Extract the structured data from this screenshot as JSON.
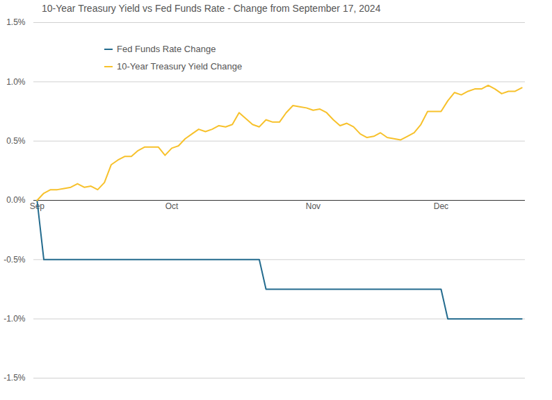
{
  "chart_data": {
    "type": "line",
    "title": "10-Year Treasury Yield vs Fed Funds Rate - Change from September 17, 2024",
    "categories": [
      "Sep",
      null,
      null,
      null,
      null,
      null,
      null,
      null,
      null,
      null,
      null,
      null,
      null,
      null,
      null,
      null,
      null,
      null,
      null,
      null,
      "Oct",
      null,
      null,
      null,
      null,
      null,
      null,
      null,
      null,
      null,
      null,
      null,
      null,
      null,
      null,
      null,
      null,
      null,
      null,
      null,
      null,
      "Nov",
      null,
      null,
      null,
      null,
      null,
      null,
      null,
      null,
      null,
      null,
      null,
      null,
      null,
      null,
      null,
      null,
      null,
      null,
      "Dec",
      null,
      null,
      null,
      null,
      null,
      null,
      null,
      null,
      null,
      null,
      null,
      null
    ],
    "series": [
      {
        "name": "Fed Funds Rate Change",
        "color": "#236b8e",
        "values": [
          0,
          -0.5,
          -0.5,
          -0.5,
          -0.5,
          -0.5,
          -0.5,
          -0.5,
          -0.5,
          -0.5,
          -0.5,
          -0.5,
          -0.5,
          -0.5,
          -0.5,
          -0.5,
          -0.5,
          -0.5,
          -0.5,
          -0.5,
          -0.5,
          -0.5,
          -0.5,
          -0.5,
          -0.5,
          -0.5,
          -0.5,
          -0.5,
          -0.5,
          -0.5,
          -0.5,
          -0.5,
          -0.5,
          -0.5,
          -0.75,
          -0.75,
          -0.75,
          -0.75,
          -0.75,
          -0.75,
          -0.75,
          -0.75,
          -0.75,
          -0.75,
          -0.75,
          -0.75,
          -0.75,
          -0.75,
          -0.75,
          -0.75,
          -0.75,
          -0.75,
          -0.75,
          -0.75,
          -0.75,
          -0.75,
          -0.75,
          -0.75,
          -0.75,
          -0.75,
          -0.75,
          -1,
          -1,
          -1,
          -1,
          -1,
          -1,
          -1,
          -1,
          -1,
          -1,
          -1,
          -1
        ]
      },
      {
        "name": "10-Year Treasury Yield Change",
        "color": "#f7c12b",
        "values": [
          0,
          0.06,
          0.09,
          0.09,
          0.1,
          0.11,
          0.14,
          0.11,
          0.12,
          0.09,
          0.15,
          0.3,
          0.34,
          0.37,
          0.37,
          0.42,
          0.45,
          0.45,
          0.45,
          0.38,
          0.44,
          0.46,
          0.52,
          0.56,
          0.6,
          0.58,
          0.6,
          0.63,
          0.62,
          0.64,
          0.74,
          0.69,
          0.64,
          0.62,
          0.68,
          0.66,
          0.66,
          0.74,
          0.8,
          0.79,
          0.78,
          0.76,
          0.77,
          0.74,
          0.68,
          0.63,
          0.65,
          0.62,
          0.56,
          0.53,
          0.54,
          0.57,
          0.53,
          0.52,
          0.51,
          0.54,
          0.57,
          0.64,
          0.75,
          0.75,
          0.75,
          0.84,
          0.91,
          0.89,
          0.92,
          0.94,
          0.94,
          0.97,
          0.94,
          0.9,
          0.92,
          0.92,
          0.95
        ]
      }
    ],
    "ylim": [
      -1.5,
      1.5
    ],
    "yticks": [
      {
        "value": -1.5,
        "label": "-1.5%"
      },
      {
        "value": -1,
        "label": "-1.0%"
      },
      {
        "value": -0.5,
        "label": "-0.5%"
      },
      {
        "value": 0,
        "label": "0.0%"
      },
      {
        "value": 0.5,
        "label": "0.5%"
      },
      {
        "value": 1,
        "label": "1.0%"
      },
      {
        "value": 1.5,
        "label": "1.5%"
      }
    ],
    "grid": true,
    "legend": "top-left"
  }
}
